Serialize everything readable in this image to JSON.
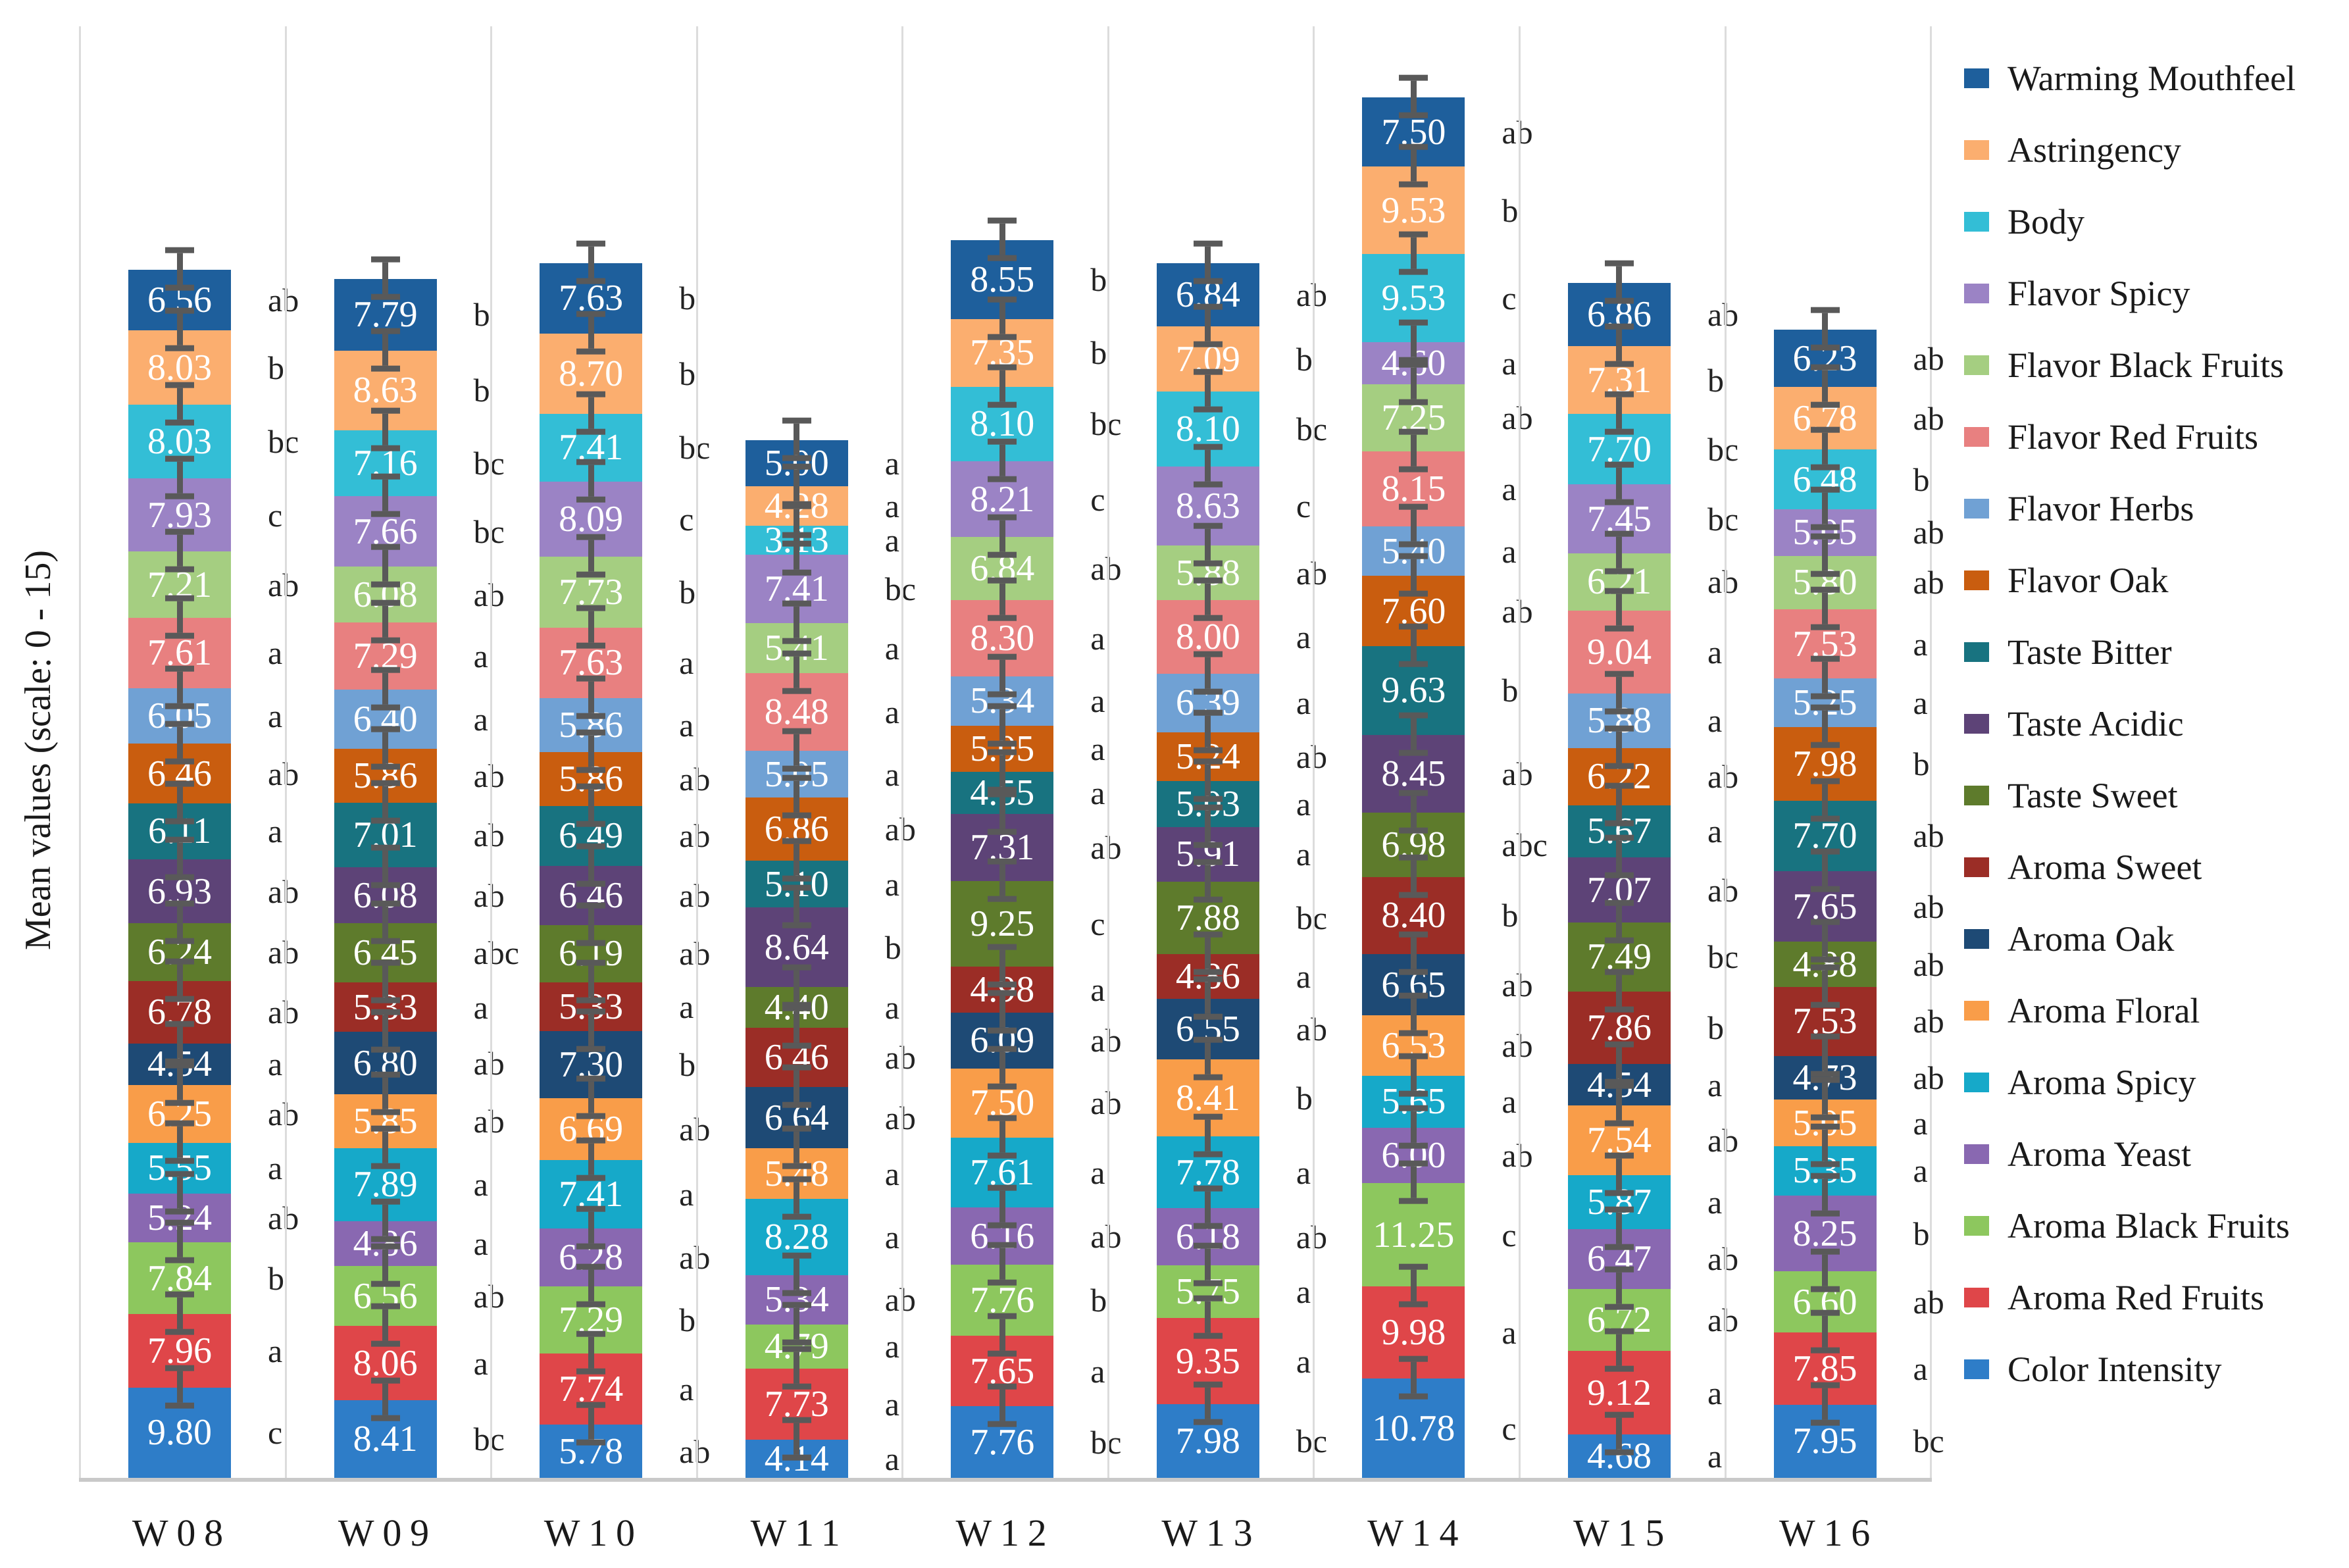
{
  "chart_data": {
    "type": "bar",
    "stacked": true,
    "title": "",
    "ylabel": "Mean values (scale: 0 - 15)",
    "xlabel": "",
    "value_scale_range": [
      0,
      15
    ],
    "legend_position": "right",
    "error_bars": true,
    "grid": "vertical-category-separators",
    "error_bar_color": "#595959",
    "categories": [
      "W08",
      "W09",
      "W10",
      "W11",
      "W12",
      "W13",
      "W14",
      "W15",
      "W16"
    ],
    "series_note": "Series listed in legend order (top of stack first); bars stack bottom-to-top in reverse of this list. Letters are significance group labels shown beside each segment.",
    "series": [
      {
        "name": "Warming Mouthfeel",
        "color": "#1e5f9c",
        "values": [
          6.56,
          7.79,
          7.63,
          5.0,
          8.55,
          6.84,
          7.5,
          6.86,
          6.23
        ],
        "letters": [
          "ab",
          "b",
          "b",
          "a",
          "b",
          "ab",
          "ab",
          "ab",
          "ab"
        ]
      },
      {
        "name": "Astringency",
        "color": "#fbae6f",
        "values": [
          8.03,
          8.63,
          8.7,
          4.28,
          7.35,
          7.09,
          9.53,
          7.31,
          6.78
        ],
        "letters": [
          "b",
          "b",
          "b",
          "a",
          "b",
          "b",
          "b",
          "b",
          "ab"
        ]
      },
      {
        "name": "Body",
        "color": "#33bed6",
        "values": [
          8.03,
          7.16,
          7.41,
          3.13,
          8.1,
          8.1,
          9.53,
          7.7,
          6.48
        ],
        "letters": [
          "bc",
          "bc",
          "bc",
          "a",
          "bc",
          "bc",
          "c",
          "bc",
          "b"
        ]
      },
      {
        "name": "Flavor Spicy",
        "color": "#9b83c5",
        "values": [
          7.93,
          7.66,
          8.09,
          7.41,
          8.21,
          8.63,
          4.6,
          7.45,
          5.05
        ],
        "letters": [
          "c",
          "bc",
          "c",
          "bc",
          "c",
          "c",
          "a",
          "bc",
          "ab"
        ]
      },
      {
        "name": "Flavor Black Fruits",
        "color": "#a5ce81",
        "values": [
          7.21,
          6.08,
          7.73,
          5.41,
          6.84,
          5.88,
          7.25,
          6.21,
          5.8
        ],
        "letters": [
          "ab",
          "ab",
          "b",
          "a",
          "ab",
          "ab",
          "ab",
          "ab",
          "ab"
        ]
      },
      {
        "name": "Flavor Red Fruits",
        "color": "#e88080",
        "values": [
          7.61,
          7.29,
          7.63,
          8.48,
          8.3,
          8.0,
          8.15,
          9.04,
          7.53
        ],
        "letters": [
          "a",
          "a",
          "a",
          "a",
          "a",
          "a",
          "a",
          "a",
          "a"
        ]
      },
      {
        "name": "Flavor Herbs",
        "color": "#70a1d4",
        "values": [
          6.05,
          6.4,
          5.86,
          5.05,
          5.34,
          6.39,
          5.4,
          5.88,
          5.25
        ],
        "letters": [
          "a",
          "a",
          "a",
          "a",
          "a",
          "a",
          "a",
          "a",
          "a"
        ]
      },
      {
        "name": "Flavor Oak",
        "color": "#c95d0f",
        "values": [
          6.46,
          5.86,
          5.86,
          6.86,
          5.05,
          5.24,
          7.6,
          6.22,
          7.98
        ],
        "letters": [
          "ab",
          "ab",
          "ab",
          "ab",
          "a",
          "ab",
          "ab",
          "ab",
          "b"
        ]
      },
      {
        "name": "Taste Bitter",
        "color": "#187380",
        "values": [
          6.11,
          7.01,
          6.49,
          5.1,
          4.55,
          5.03,
          9.63,
          5.67,
          7.7
        ],
        "letters": [
          "a",
          "ab",
          "ab",
          "a",
          "a",
          "a",
          "b",
          "a",
          "ab"
        ]
      },
      {
        "name": "Taste Acidic",
        "color": "#5d4377",
        "values": [
          6.93,
          6.08,
          6.46,
          8.64,
          7.31,
          5.91,
          8.45,
          7.07,
          7.65
        ],
        "letters": [
          "ab",
          "ab",
          "ab",
          "b",
          "ab",
          "a",
          "ab",
          "ab",
          "ab"
        ]
      },
      {
        "name": "Taste Sweet",
        "color": "#5e7b2c",
        "values": [
          6.24,
          6.45,
          6.19,
          4.4,
          9.25,
          7.88,
          6.98,
          7.49,
          4.88
        ],
        "letters": [
          "ab",
          "abc",
          "ab",
          "a",
          "c",
          "bc",
          "abc",
          "bc",
          "ab"
        ]
      },
      {
        "name": "Aroma Sweet",
        "color": "#9b2d26",
        "values": [
          6.78,
          5.33,
          5.33,
          6.46,
          4.98,
          4.86,
          8.4,
          7.86,
          7.53
        ],
        "letters": [
          "ab",
          "a",
          "a",
          "ab",
          "a",
          "a",
          "b",
          "b",
          "ab"
        ]
      },
      {
        "name": "Aroma Oak",
        "color": "#1e4a75",
        "values": [
          4.54,
          6.8,
          7.3,
          6.64,
          6.09,
          6.55,
          6.65,
          4.54,
          4.73
        ],
        "letters": [
          "a",
          "ab",
          "b",
          "ab",
          "ab",
          "ab",
          "ab",
          "a",
          "ab"
        ]
      },
      {
        "name": "Aroma Floral",
        "color": "#f99d49",
        "values": [
          6.25,
          5.85,
          6.69,
          5.48,
          7.5,
          8.41,
          6.53,
          7.54,
          5.05
        ],
        "letters": [
          "ab",
          "ab",
          "ab",
          "a",
          "ab",
          "b",
          "ab",
          "ab",
          "a"
        ]
      },
      {
        "name": "Aroma Spicy",
        "color": "#16a9c9",
        "values": [
          5.55,
          7.89,
          7.41,
          8.28,
          7.61,
          7.78,
          5.65,
          5.87,
          5.35
        ],
        "letters": [
          "a",
          "a",
          "a",
          "a",
          "a",
          "a",
          "a",
          "a",
          "a"
        ]
      },
      {
        "name": "Aroma Yeast",
        "color": "#8968b1",
        "values": [
          5.24,
          4.86,
          6.28,
          5.34,
          6.16,
          6.18,
          6.0,
          6.47,
          8.25
        ],
        "letters": [
          "ab",
          "a",
          "ab",
          "ab",
          "ab",
          "ab",
          "ab",
          "ab",
          "b"
        ]
      },
      {
        "name": "Aroma Black Fruits",
        "color": "#8dc75e",
        "values": [
          7.84,
          6.56,
          7.29,
          4.79,
          7.76,
          5.75,
          11.25,
          6.72,
          6.6
        ],
        "letters": [
          "b",
          "ab",
          "b",
          "a",
          "b",
          "a",
          "c",
          "ab",
          "ab"
        ]
      },
      {
        "name": "Aroma Red Fruits",
        "color": "#df4649",
        "values": [
          7.96,
          8.06,
          7.74,
          7.73,
          7.65,
          9.35,
          9.98,
          9.12,
          7.85
        ],
        "letters": [
          "a",
          "a",
          "a",
          "a",
          "a",
          "a",
          "a",
          "a",
          "a"
        ]
      },
      {
        "name": "Color Intensity",
        "color": "#2e7dc8",
        "values": [
          9.8,
          8.41,
          5.78,
          4.14,
          7.76,
          7.98,
          10.78,
          4.68,
          7.95
        ],
        "letters": [
          "c",
          "bc",
          "ab",
          "a",
          "bc",
          "bc",
          "c",
          "a",
          "bc"
        ]
      }
    ]
  }
}
